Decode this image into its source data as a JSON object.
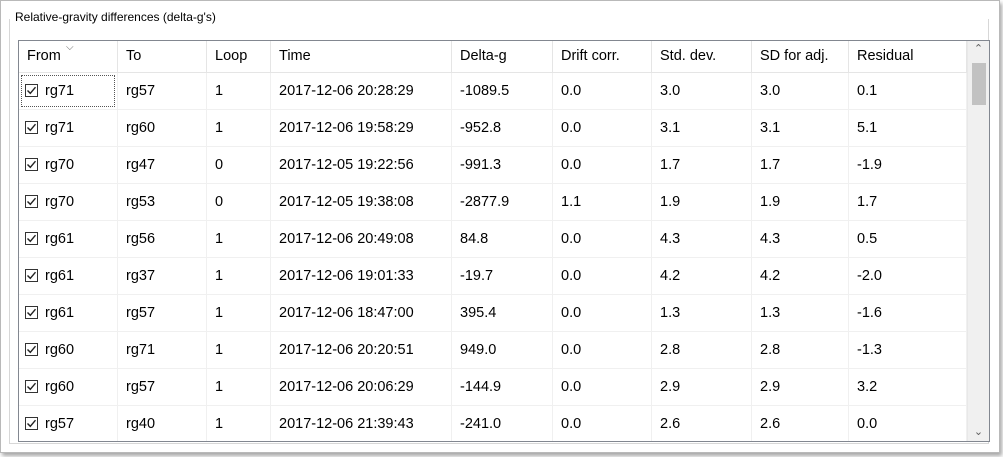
{
  "group": {
    "title": "Relative-gravity differences (delta-g's)"
  },
  "table": {
    "columns": [
      {
        "key": "from",
        "label": "From"
      },
      {
        "key": "to",
        "label": "To"
      },
      {
        "key": "loop",
        "label": "Loop"
      },
      {
        "key": "time",
        "label": "Time"
      },
      {
        "key": "delta_g",
        "label": "Delta-g"
      },
      {
        "key": "drift",
        "label": "Drift corr."
      },
      {
        "key": "std",
        "label": "Std. dev."
      },
      {
        "key": "sd_adj",
        "label": "SD for adj."
      },
      {
        "key": "residual",
        "label": "Residual"
      }
    ],
    "rows": [
      {
        "checked": true,
        "from": "rg71",
        "to": "rg57",
        "loop": "1",
        "time": "2017-12-06 20:28:29",
        "delta_g": "-1089.5",
        "drift": "0.0",
        "std": "3.0",
        "sd_adj": "3.0",
        "residual": "0.1"
      },
      {
        "checked": true,
        "from": "rg71",
        "to": "rg60",
        "loop": "1",
        "time": "2017-12-06 19:58:29",
        "delta_g": "-952.8",
        "drift": "0.0",
        "std": "3.1",
        "sd_adj": "3.1",
        "residual": "5.1"
      },
      {
        "checked": true,
        "from": "rg70",
        "to": "rg47",
        "loop": "0",
        "time": "2017-12-05 19:22:56",
        "delta_g": "-991.3",
        "drift": "0.0",
        "std": "1.7",
        "sd_adj": "1.7",
        "residual": "-1.9"
      },
      {
        "checked": true,
        "from": "rg70",
        "to": "rg53",
        "loop": "0",
        "time": "2017-12-05 19:38:08",
        "delta_g": "-2877.9",
        "drift": "1.1",
        "std": "1.9",
        "sd_adj": "1.9",
        "residual": "1.7"
      },
      {
        "checked": true,
        "from": "rg61",
        "to": "rg56",
        "loop": "1",
        "time": "2017-12-06 20:49:08",
        "delta_g": "84.8",
        "drift": "0.0",
        "std": "4.3",
        "sd_adj": "4.3",
        "residual": "0.5"
      },
      {
        "checked": true,
        "from": "rg61",
        "to": "rg37",
        "loop": "1",
        "time": "2017-12-06 19:01:33",
        "delta_g": "-19.7",
        "drift": "0.0",
        "std": "4.2",
        "sd_adj": "4.2",
        "residual": "-2.0"
      },
      {
        "checked": true,
        "from": "rg61",
        "to": "rg57",
        "loop": "1",
        "time": "2017-12-06 18:47:00",
        "delta_g": "395.4",
        "drift": "0.0",
        "std": "1.3",
        "sd_adj": "1.3",
        "residual": "-1.6"
      },
      {
        "checked": true,
        "from": "rg60",
        "to": "rg71",
        "loop": "1",
        "time": "2017-12-06 20:20:51",
        "delta_g": "949.0",
        "drift": "0.0",
        "std": "2.8",
        "sd_adj": "2.8",
        "residual": "-1.3"
      },
      {
        "checked": true,
        "from": "rg60",
        "to": "rg57",
        "loop": "1",
        "time": "2017-12-06 20:06:29",
        "delta_g": "-144.9",
        "drift": "0.0",
        "std": "2.9",
        "sd_adj": "2.9",
        "residual": "3.2"
      },
      {
        "checked": true,
        "from": "rg57",
        "to": "rg40",
        "loop": "1",
        "time": "2017-12-06 21:39:43",
        "delta_g": "-241.0",
        "drift": "0.0",
        "std": "2.6",
        "sd_adj": "2.6",
        "residual": "0.0"
      }
    ]
  },
  "icons": {
    "sort": "chevron-down-icon",
    "scroll_up": "chevron-up-icon",
    "scroll_down": "chevron-down-icon",
    "check": "checkmark-icon"
  }
}
